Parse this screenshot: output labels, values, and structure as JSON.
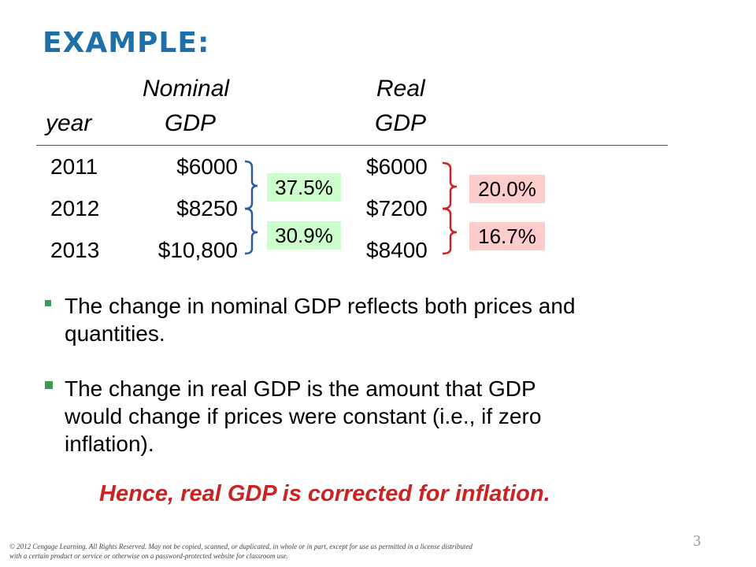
{
  "title": "EXAMPLE:",
  "table": {
    "headers": {
      "year": "year",
      "nominal_line1": "Nominal",
      "nominal_line2": "GDP",
      "real_line1": "Real",
      "real_line2": "GDP"
    },
    "rows": [
      {
        "year": "2011",
        "nominal": "$6000",
        "real": "$6000"
      },
      {
        "year": "2012",
        "nominal": "$8250",
        "real": "$7200"
      },
      {
        "year": "2013",
        "nominal": "$10,800",
        "real": "$8400"
      }
    ],
    "nominal_changes": [
      "37.5%",
      "30.9%"
    ],
    "real_changes": [
      "20.0%",
      "16.7%"
    ]
  },
  "colors": {
    "title": "#1f6fa8",
    "green_box": "#ccffcc",
    "pink_box": "#ffcccc",
    "green_brace": "#2d5aa0",
    "red_brace": "#cc2222",
    "emphasis": "#cc2222",
    "bullet": "#3c9a52"
  },
  "bullets": [
    "The change in nominal GDP reflects both prices and quantities.",
    "The change in real GDP is the amount that GDP would change if prices were constant (i.e., if zero inflation)."
  ],
  "emphasis": "Hence, real GDP is corrected for inflation.",
  "footer": {
    "copyright": "© 2012 Cengage Learning. All Rights Reserved. May not be copied, scanned, or duplicated, in whole or in part, except for use as permitted in a license distributed with a certain product or service or otherwise on a password-protected website for classroom use.",
    "page_number": "3"
  }
}
